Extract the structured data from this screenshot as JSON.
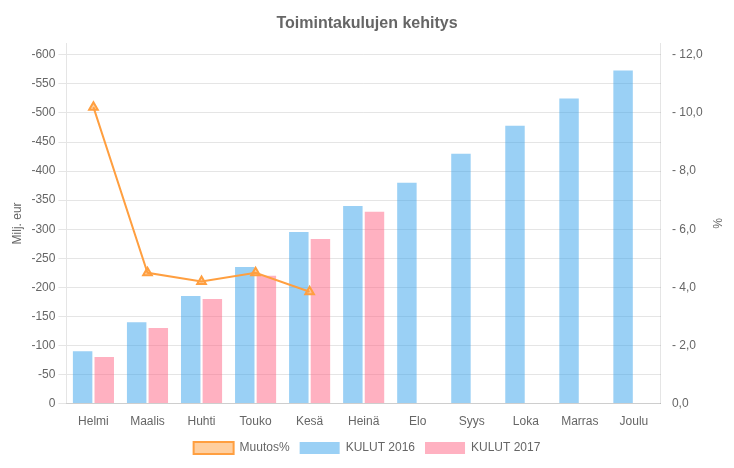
{
  "chart_data": {
    "type": "bar",
    "title": "Toimintakulujen kehitys",
    "ylabel": "Milj. eur",
    "y2label": "%",
    "categories": [
      "Helmi",
      "Maalis",
      "Huhti",
      "Touko",
      "Kesä",
      "Heinä",
      "Elo",
      "Syys",
      "Loka",
      "Marras",
      "Joulu"
    ],
    "series": [
      {
        "name": "KULUT 2016",
        "values": [
          -90,
          -140,
          -185,
          -235,
          -295,
          -340,
          -380,
          -430,
          -478,
          -525,
          -573
        ]
      },
      {
        "name": "KULUT 2017",
        "values": [
          -80,
          -130,
          -180,
          -220,
          -283,
          -330,
          null,
          null,
          null,
          null,
          null
        ]
      },
      {
        "name": "Muutos%",
        "type": "line",
        "axis": "y2",
        "marker": "triangle",
        "values": [
          -10.2,
          -4.5,
          -4.2,
          -4.5,
          -3.85,
          null,
          null,
          null,
          null,
          null,
          null
        ]
      }
    ],
    "ylim": [
      0,
      -620
    ],
    "yticks": [
      0,
      -50,
      -100,
      -150,
      -200,
      -250,
      -300,
      -350,
      -400,
      -450,
      -500,
      -550,
      -600
    ],
    "y2lim": [
      0,
      -12.4
    ],
    "y2ticks": [
      {
        "value": 0,
        "label": "0,0"
      },
      {
        "value": -2,
        "label": "- 2,0"
      },
      {
        "value": -4,
        "label": "- 4,0"
      },
      {
        "value": -6,
        "label": "- 6,0"
      },
      {
        "value": -8,
        "label": "- 8,0"
      },
      {
        "value": -10,
        "label": "- 10,0"
      },
      {
        "value": -12,
        "label": "- 12,0"
      }
    ],
    "grid": true,
    "legend": "bottom"
  }
}
